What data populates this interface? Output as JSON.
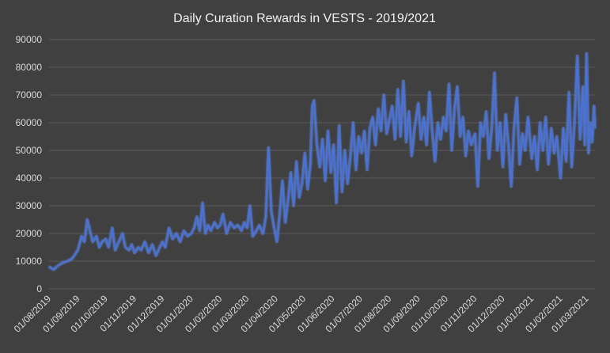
{
  "chart_data": {
    "type": "line",
    "title": "Daily Curation Rewards in VESTS - 2019/2021",
    "xlabel": "",
    "ylabel": "",
    "ylim": [
      0,
      90000
    ],
    "y_ticks": [
      "0",
      "10000",
      "20000",
      "30000",
      "40000",
      "50000",
      "60000",
      "70000",
      "80000",
      "90000"
    ],
    "x_ticks": [
      "01/08/2019",
      "01/09/2019",
      "01/10/2019",
      "01/11/2019",
      "01/12/2019",
      "01/01/2020",
      "01/02/2020",
      "01/03/2020",
      "01/04/2020",
      "01/05/2020",
      "01/06/2020",
      "01/07/2020",
      "01/08/2020",
      "01/09/2020",
      "01/10/2020",
      "01/11/2020",
      "01/12/2020",
      "01/01/2021",
      "01/02/2021",
      "01/03/2021"
    ],
    "grid": true,
    "legend": "none",
    "colors": {
      "line": "#4a73d9",
      "glow": "#7ea3ff",
      "background": "#404040"
    },
    "series": [
      {
        "points": [
          [
            "01/08/2019",
            8000
          ],
          [
            "06/08/2019",
            7000
          ],
          [
            "11/08/2019",
            8500
          ],
          [
            "16/08/2019",
            9500
          ],
          [
            "21/08/2019",
            10000
          ],
          [
            "26/08/2019",
            11000
          ],
          [
            "01/09/2019",
            14000
          ],
          [
            "05/09/2019",
            19000
          ],
          [
            "08/09/2019",
            17000
          ],
          [
            "11/09/2019",
            25000
          ],
          [
            "14/09/2019",
            21000
          ],
          [
            "17/09/2019",
            17000
          ],
          [
            "21/09/2019",
            19000
          ],
          [
            "24/09/2019",
            15000
          ],
          [
            "27/09/2019",
            17000
          ],
          [
            "01/10/2019",
            18000
          ],
          [
            "04/10/2019",
            15000
          ],
          [
            "08/10/2019",
            22000
          ],
          [
            "11/10/2019",
            14000
          ],
          [
            "15/10/2019",
            17000
          ],
          [
            "19/10/2019",
            20000
          ],
          [
            "22/10/2019",
            15000
          ],
          [
            "26/10/2019",
            14000
          ],
          [
            "29/10/2019",
            16000
          ],
          [
            "01/11/2019",
            13000
          ],
          [
            "05/11/2019",
            15000
          ],
          [
            "08/11/2019",
            14000
          ],
          [
            "12/11/2019",
            17000
          ],
          [
            "16/11/2019",
            13000
          ],
          [
            "20/11/2019",
            16000
          ],
          [
            "24/11/2019",
            12000
          ],
          [
            "28/11/2019",
            15000
          ],
          [
            "01/12/2019",
            17000
          ],
          [
            "04/12/2019",
            15000
          ],
          [
            "08/12/2019",
            22000
          ],
          [
            "12/12/2019",
            18000
          ],
          [
            "16/12/2019",
            20000
          ],
          [
            "20/12/2019",
            17000
          ],
          [
            "24/12/2019",
            21000
          ],
          [
            "28/12/2019",
            19000
          ],
          [
            "01/01/2020",
            20000
          ],
          [
            "04/01/2020",
            22000
          ],
          [
            "07/01/2020",
            26000
          ],
          [
            "10/01/2020",
            21000
          ],
          [
            "13/01/2020",
            31000
          ],
          [
            "16/01/2020",
            20000
          ],
          [
            "19/01/2020",
            23000
          ],
          [
            "22/01/2020",
            21000
          ],
          [
            "26/01/2020",
            24000
          ],
          [
            "29/01/2020",
            22000
          ],
          [
            "01/02/2020",
            23000
          ],
          [
            "04/02/2020",
            27000
          ],
          [
            "08/02/2020",
            20000
          ],
          [
            "12/02/2020",
            24000
          ],
          [
            "16/02/2020",
            22000
          ],
          [
            "20/02/2020",
            23000
          ],
          [
            "24/02/2020",
            21000
          ],
          [
            "27/02/2020",
            24000
          ],
          [
            "01/03/2020",
            22000
          ],
          [
            "04/03/2020",
            30000
          ],
          [
            "07/03/2020",
            19000
          ],
          [
            "11/03/2020",
            21000
          ],
          [
            "14/03/2020",
            23000
          ],
          [
            "18/03/2020",
            20000
          ],
          [
            "21/03/2020",
            26000
          ],
          [
            "24/03/2020",
            51000
          ],
          [
            "27/03/2020",
            28000
          ],
          [
            "30/03/2020",
            22000
          ],
          [
            "02/04/2020",
            17000
          ],
          [
            "05/04/2020",
            27000
          ],
          [
            "08/04/2020",
            39000
          ],
          [
            "11/04/2020",
            24000
          ],
          [
            "14/04/2020",
            32000
          ],
          [
            "17/04/2020",
            42000
          ],
          [
            "20/04/2020",
            30000
          ],
          [
            "23/04/2020",
            46000
          ],
          [
            "26/04/2020",
            33000
          ],
          [
            "29/04/2020",
            38000
          ],
          [
            "02/05/2020",
            49000
          ],
          [
            "05/05/2020",
            36000
          ],
          [
            "08/05/2020",
            45000
          ],
          [
            "10/05/2020",
            66000
          ],
          [
            "12/05/2020",
            68000
          ],
          [
            "15/05/2020",
            52000
          ],
          [
            "18/05/2020",
            44000
          ],
          [
            "21/05/2020",
            54000
          ],
          [
            "24/05/2020",
            39000
          ],
          [
            "27/05/2020",
            57000
          ],
          [
            "30/05/2020",
            42000
          ],
          [
            "02/06/2020",
            52000
          ],
          [
            "05/06/2020",
            31000
          ],
          [
            "08/06/2020",
            59000
          ],
          [
            "11/06/2020",
            35000
          ],
          [
            "14/06/2020",
            50000
          ],
          [
            "17/06/2020",
            38000
          ],
          [
            "20/06/2020",
            48000
          ],
          [
            "23/06/2020",
            60000
          ],
          [
            "26/06/2020",
            43000
          ],
          [
            "29/06/2020",
            55000
          ],
          [
            "02/07/2020",
            49000
          ],
          [
            "05/07/2020",
            57000
          ],
          [
            "08/07/2020",
            43000
          ],
          [
            "11/07/2020",
            58000
          ],
          [
            "14/07/2020",
            62000
          ],
          [
            "17/07/2020",
            52000
          ],
          [
            "20/07/2020",
            65000
          ],
          [
            "23/07/2020",
            57000
          ],
          [
            "26/07/2020",
            70000
          ],
          [
            "29/07/2020",
            56000
          ],
          [
            "01/08/2020",
            61000
          ],
          [
            "04/08/2020",
            66000
          ],
          [
            "07/08/2020",
            54000
          ],
          [
            "10/08/2020",
            72000
          ],
          [
            "13/08/2020",
            55000
          ],
          [
            "16/08/2020",
            75000
          ],
          [
            "19/08/2020",
            53000
          ],
          [
            "22/08/2020",
            64000
          ],
          [
            "25/08/2020",
            48000
          ],
          [
            "28/08/2020",
            58000
          ],
          [
            "01/09/2020",
            67000
          ],
          [
            "04/09/2020",
            54000
          ],
          [
            "07/09/2020",
            62000
          ],
          [
            "10/09/2020",
            52000
          ],
          [
            "13/09/2020",
            71000
          ],
          [
            "16/09/2020",
            57000
          ],
          [
            "19/09/2020",
            46000
          ],
          [
            "22/09/2020",
            60000
          ],
          [
            "25/09/2020",
            54000
          ],
          [
            "28/09/2020",
            62000
          ],
          [
            "01/10/2020",
            57000
          ],
          [
            "04/10/2020",
            74000
          ],
          [
            "07/10/2020",
            50000
          ],
          [
            "10/10/2020",
            65000
          ],
          [
            "13/10/2020",
            73000
          ],
          [
            "16/10/2020",
            55000
          ],
          [
            "19/10/2020",
            62000
          ],
          [
            "22/10/2020",
            48000
          ],
          [
            "25/10/2020",
            57000
          ],
          [
            "28/10/2020",
            52000
          ],
          [
            "01/11/2020",
            56000
          ],
          [
            "04/11/2020",
            37000
          ],
          [
            "07/11/2020",
            60000
          ],
          [
            "10/11/2020",
            55000
          ],
          [
            "13/11/2020",
            64000
          ],
          [
            "16/11/2020",
            47000
          ],
          [
            "19/11/2020",
            58000
          ],
          [
            "22/11/2020",
            78000
          ],
          [
            "25/11/2020",
            50000
          ],
          [
            "28/11/2020",
            60000
          ],
          [
            "01/12/2020",
            44000
          ],
          [
            "04/12/2020",
            63000
          ],
          [
            "07/12/2020",
            52000
          ],
          [
            "10/12/2020",
            37000
          ],
          [
            "13/12/2020",
            58000
          ],
          [
            "16/12/2020",
            69000
          ],
          [
            "19/12/2020",
            45000
          ],
          [
            "22/12/2020",
            56000
          ],
          [
            "25/12/2020",
            50000
          ],
          [
            "28/12/2020",
            62000
          ],
          [
            "01/01/2021",
            47000
          ],
          [
            "04/01/2021",
            55000
          ],
          [
            "07/01/2021",
            43000
          ],
          [
            "10/01/2021",
            60000
          ],
          [
            "13/01/2021",
            50000
          ],
          [
            "16/01/2021",
            62000
          ],
          [
            "19/01/2021",
            45000
          ],
          [
            "22/01/2021",
            58000
          ],
          [
            "25/01/2021",
            49000
          ],
          [
            "28/01/2021",
            55000
          ],
          [
            "01/02/2021",
            40000
          ],
          [
            "04/02/2021",
            58000
          ],
          [
            "07/02/2021",
            46000
          ],
          [
            "10/02/2021",
            71000
          ],
          [
            "13/02/2021",
            44000
          ],
          [
            "16/02/2021",
            60000
          ],
          [
            "19/02/2021",
            84000
          ],
          [
            "22/02/2021",
            54000
          ],
          [
            "25/02/2021",
            73000
          ],
          [
            "27/02/2021",
            52000
          ],
          [
            "01/03/2021",
            85000
          ],
          [
            "03/03/2021",
            49000
          ],
          [
            "05/03/2021",
            60000
          ],
          [
            "07/03/2021",
            53000
          ],
          [
            "09/03/2021",
            66000
          ],
          [
            "10/03/2021",
            58000
          ]
        ]
      }
    ]
  }
}
